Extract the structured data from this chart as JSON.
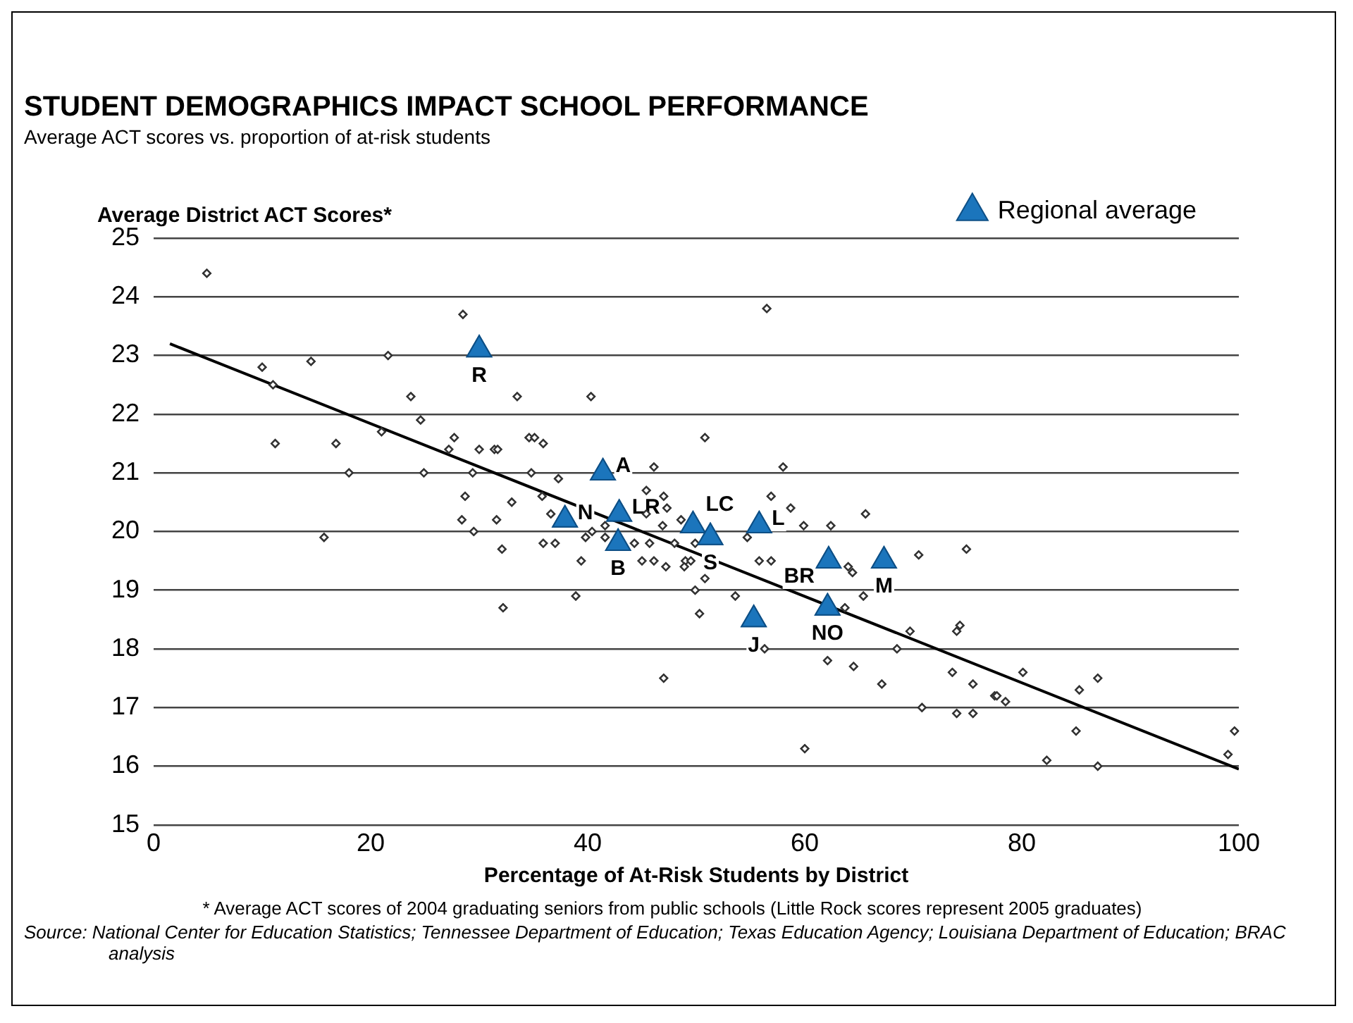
{
  "chart_data": {
    "type": "scatter",
    "title": "STUDENT DEMOGRAPHICS IMPACT SCHOOL PERFORMANCE",
    "subtitle": "Average ACT scores vs. proportion of at-risk students",
    "xlabel": "Percentage of At-Risk Students by District",
    "ylabel": "Average District ACT Scores*",
    "xlim": [
      0,
      100
    ],
    "ylim": [
      15,
      25
    ],
    "xticks": [
      0,
      20,
      40,
      60,
      80,
      100
    ],
    "yticks": [
      15,
      16,
      17,
      18,
      19,
      20,
      21,
      22,
      23,
      24,
      25
    ],
    "grid": "y",
    "legend": "top right",
    "series": [
      {
        "type": "scatter",
        "marker": "diamond",
        "color": "#333333",
        "x": [
          4.9,
          28.5,
          14.5,
          21.6,
          10.0,
          11.0,
          23.7,
          33.5,
          24.6,
          21.0,
          11.2,
          16.8,
          27.7,
          27.2,
          30.0,
          31.4,
          31.7,
          34.6,
          35.1,
          35.9,
          18.0,
          24.9,
          29.4,
          34.8,
          28.7,
          33.0,
          35.8,
          28.4,
          31.6,
          29.5,
          15.7,
          36.6,
          32.1,
          35.9,
          32.2,
          50.8,
          58.0,
          46.1,
          37.3,
          45.4,
          47.0,
          47.3,
          45.4,
          56.9,
          58.7,
          65.6,
          46.9,
          48.6,
          59.9,
          62.4,
          41.6,
          40.4,
          39.8,
          37.0,
          41.6,
          44.3,
          45.7,
          48.0,
          49.9,
          54.7,
          39.4,
          45.0,
          46.1,
          47.2,
          49.0,
          49.5,
          48.9,
          55.8,
          56.9,
          64.0,
          64.4,
          70.5,
          50.8,
          38.9,
          49.9,
          53.6,
          65.4,
          50.3,
          63.7,
          69.7,
          68.5,
          56.3,
          62.1,
          64.5,
          67.1,
          47.0,
          70.8,
          56.5,
          40.3,
          74.9,
          74.0,
          74.3,
          73.6,
          75.5,
          80.1,
          77.5,
          77.7,
          78.5,
          85.3,
          87.0,
          74.0,
          75.5,
          60.0,
          85.0,
          82.3,
          87.0,
          99.0,
          99.6
        ],
        "values": [
          24.4,
          23.7,
          22.9,
          23.0,
          22.8,
          22.5,
          22.3,
          22.3,
          21.9,
          21.7,
          21.5,
          21.5,
          21.6,
          21.4,
          21.4,
          21.4,
          21.4,
          21.6,
          21.6,
          21.5,
          21.0,
          21.0,
          21.0,
          21.0,
          20.6,
          20.5,
          20.6,
          20.2,
          20.2,
          20.0,
          19.9,
          20.3,
          19.7,
          19.8,
          18.7,
          21.6,
          21.1,
          21.1,
          20.9,
          20.7,
          20.6,
          20.4,
          20.3,
          20.6,
          20.4,
          20.3,
          20.1,
          20.2,
          20.1,
          20.1,
          20.1,
          20.0,
          19.9,
          19.8,
          19.9,
          19.8,
          19.8,
          19.8,
          19.8,
          19.9,
          19.5,
          19.5,
          19.5,
          19.4,
          19.5,
          19.5,
          19.4,
          19.5,
          19.5,
          19.4,
          19.3,
          19.6,
          19.2,
          18.9,
          19.0,
          18.9,
          18.9,
          18.6,
          18.7,
          18.3,
          18.0,
          18.0,
          17.8,
          17.7,
          17.4,
          17.5,
          17.0,
          23.8,
          22.3,
          19.7,
          18.3,
          18.4,
          17.6,
          17.4,
          17.6,
          17.2,
          17.2,
          17.1,
          17.3,
          17.5,
          16.9,
          16.9,
          16.3,
          16.6,
          16.1,
          16.0,
          16.2,
          16.6
        ]
      },
      {
        "type": "scatter",
        "name": "Regional average",
        "marker": "triangle",
        "color": "#1b75bc",
        "x": [
          30.0,
          41.4,
          42.9,
          37.9,
          42.8,
          49.7,
          51.3,
          55.8,
          62.2,
          67.3,
          55.3,
          62.1
        ],
        "values": [
          23.1,
          21.0,
          20.3,
          20.2,
          19.8,
          20.1,
          19.9,
          20.1,
          19.5,
          19.5,
          18.5,
          18.7
        ]
      },
      {
        "type": "line",
        "marker": "none",
        "color": "#000000",
        "x": [
          1.5,
          100
        ],
        "values": [
          23.2,
          15.95
        ]
      }
    ],
    "annotations": [
      {
        "text": "R",
        "x": 30.0,
        "y": 23.1
      },
      {
        "text": "A",
        "x": 41.4,
        "y": 21.0
      },
      {
        "text": "LR",
        "x": 42.9,
        "y": 20.3
      },
      {
        "text": "N",
        "x": 37.9,
        "y": 20.2
      },
      {
        "text": "B",
        "x": 42.8,
        "y": 19.8
      },
      {
        "text": "LC",
        "x": 49.7,
        "y": 20.1
      },
      {
        "text": "S",
        "x": 51.3,
        "y": 19.9
      },
      {
        "text": "L",
        "x": 55.8,
        "y": 20.1
      },
      {
        "text": "BR",
        "x": 62.2,
        "y": 19.5
      },
      {
        "text": "M",
        "x": 67.3,
        "y": 19.5
      },
      {
        "text": "J",
        "x": 55.3,
        "y": 18.5
      },
      {
        "text": "NO",
        "x": 62.1,
        "y": 18.7
      },
      "* Average ACT scores of 2004 graduating seniors from public schools (Little Rock scores represent 2005 graduates)",
      "Source: National Center for Education Statistics; Tennessee Department of Education; Texas Education Agency; Louisiana Department of Education; BRAC analysis"
    ]
  }
}
